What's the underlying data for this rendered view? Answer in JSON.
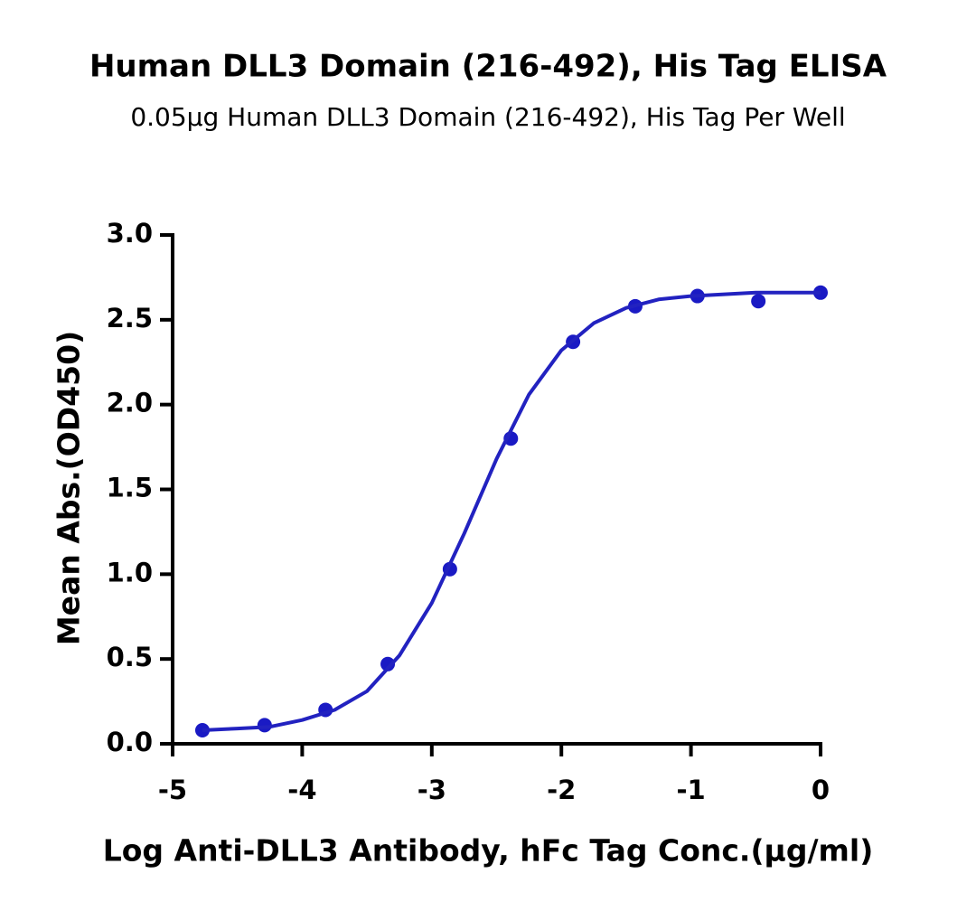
{
  "chart_data": {
    "type": "scatter",
    "title": "Human DLL3 Domain (216-492), His Tag ELISA",
    "subtitle": "0.05μg Human DLL3 Domain (216-492), His Tag Per Well",
    "x_label": "Log Anti-DLL3 Antibody, hFc Tag Conc.(μg/ml)",
    "y_label": "Mean Abs.(OD450)",
    "xlim": [
      -5,
      0
    ],
    "xticks": [
      -5,
      -4,
      -3,
      -2,
      -1,
      0
    ],
    "ylim": [
      0,
      3
    ],
    "yticks": [
      {
        "value": 0,
        "label": "0.0"
      },
      0.5,
      {
        "value": 1,
        "label": "1.0"
      },
      1.5,
      {
        "value": 2,
        "label": "2.0"
      },
      2.5,
      {
        "value": 3,
        "label": "3.0"
      }
    ],
    "grid": false,
    "series": [
      {
        "color": "#1a1ac4",
        "marker": "circle",
        "x": [
          -4.77,
          -4.29,
          -3.82,
          -3.34,
          -2.86,
          -2.39,
          -1.91,
          -1.43,
          -0.95,
          -0.48,
          0
        ],
        "values": [
          0.08,
          0.11,
          0.2,
          0.47,
          1.03,
          1.8,
          2.37,
          2.58,
          2.64,
          2.61,
          2.66
        ]
      },
      {
        "color": "#2222c0",
        "line": true,
        "x": [
          -4.77,
          -4.5,
          -4.25,
          -4.0,
          -3.75,
          -3.5,
          -3.25,
          -3.0,
          -2.75,
          -2.5,
          -2.25,
          -2.0,
          -1.75,
          -1.5,
          -1.25,
          -1.0,
          -0.5,
          0
        ],
        "values": [
          0.08,
          0.09,
          0.1,
          0.14,
          0.2,
          0.31,
          0.52,
          0.83,
          1.24,
          1.68,
          2.06,
          2.32,
          2.48,
          2.57,
          2.62,
          2.64,
          2.66,
          2.66
        ]
      }
    ]
  }
}
